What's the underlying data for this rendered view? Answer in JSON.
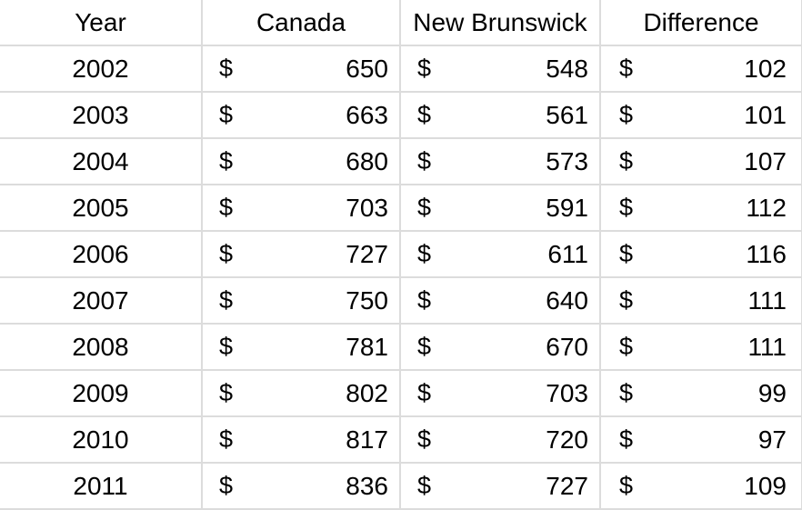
{
  "table": {
    "headers": [
      "Year",
      "Canada",
      "New Brunswick",
      "Difference"
    ],
    "currency_symbol": "$",
    "rows": [
      {
        "year": "2002",
        "canada": "650",
        "new_brunswick": "548",
        "difference": "102"
      },
      {
        "year": "2003",
        "canada": "663",
        "new_brunswick": "561",
        "difference": "101"
      },
      {
        "year": "2004",
        "canada": "680",
        "new_brunswick": "573",
        "difference": "107"
      },
      {
        "year": "2005",
        "canada": "703",
        "new_brunswick": "591",
        "difference": "112"
      },
      {
        "year": "2006",
        "canada": "727",
        "new_brunswick": "611",
        "difference": "116"
      },
      {
        "year": "2007",
        "canada": "750",
        "new_brunswick": "640",
        "difference": "111"
      },
      {
        "year": "2008",
        "canada": "781",
        "new_brunswick": "670",
        "difference": "111"
      },
      {
        "year": "2009",
        "canada": "802",
        "new_brunswick": "703",
        "difference": "99"
      },
      {
        "year": "2010",
        "canada": "817",
        "new_brunswick": "720",
        "difference": "97"
      },
      {
        "year": "2011",
        "canada": "836",
        "new_brunswick": "727",
        "difference": "109"
      }
    ]
  },
  "colors": {
    "gridline": "#dcdcdc",
    "text": "#000000",
    "background": "#ffffff"
  }
}
